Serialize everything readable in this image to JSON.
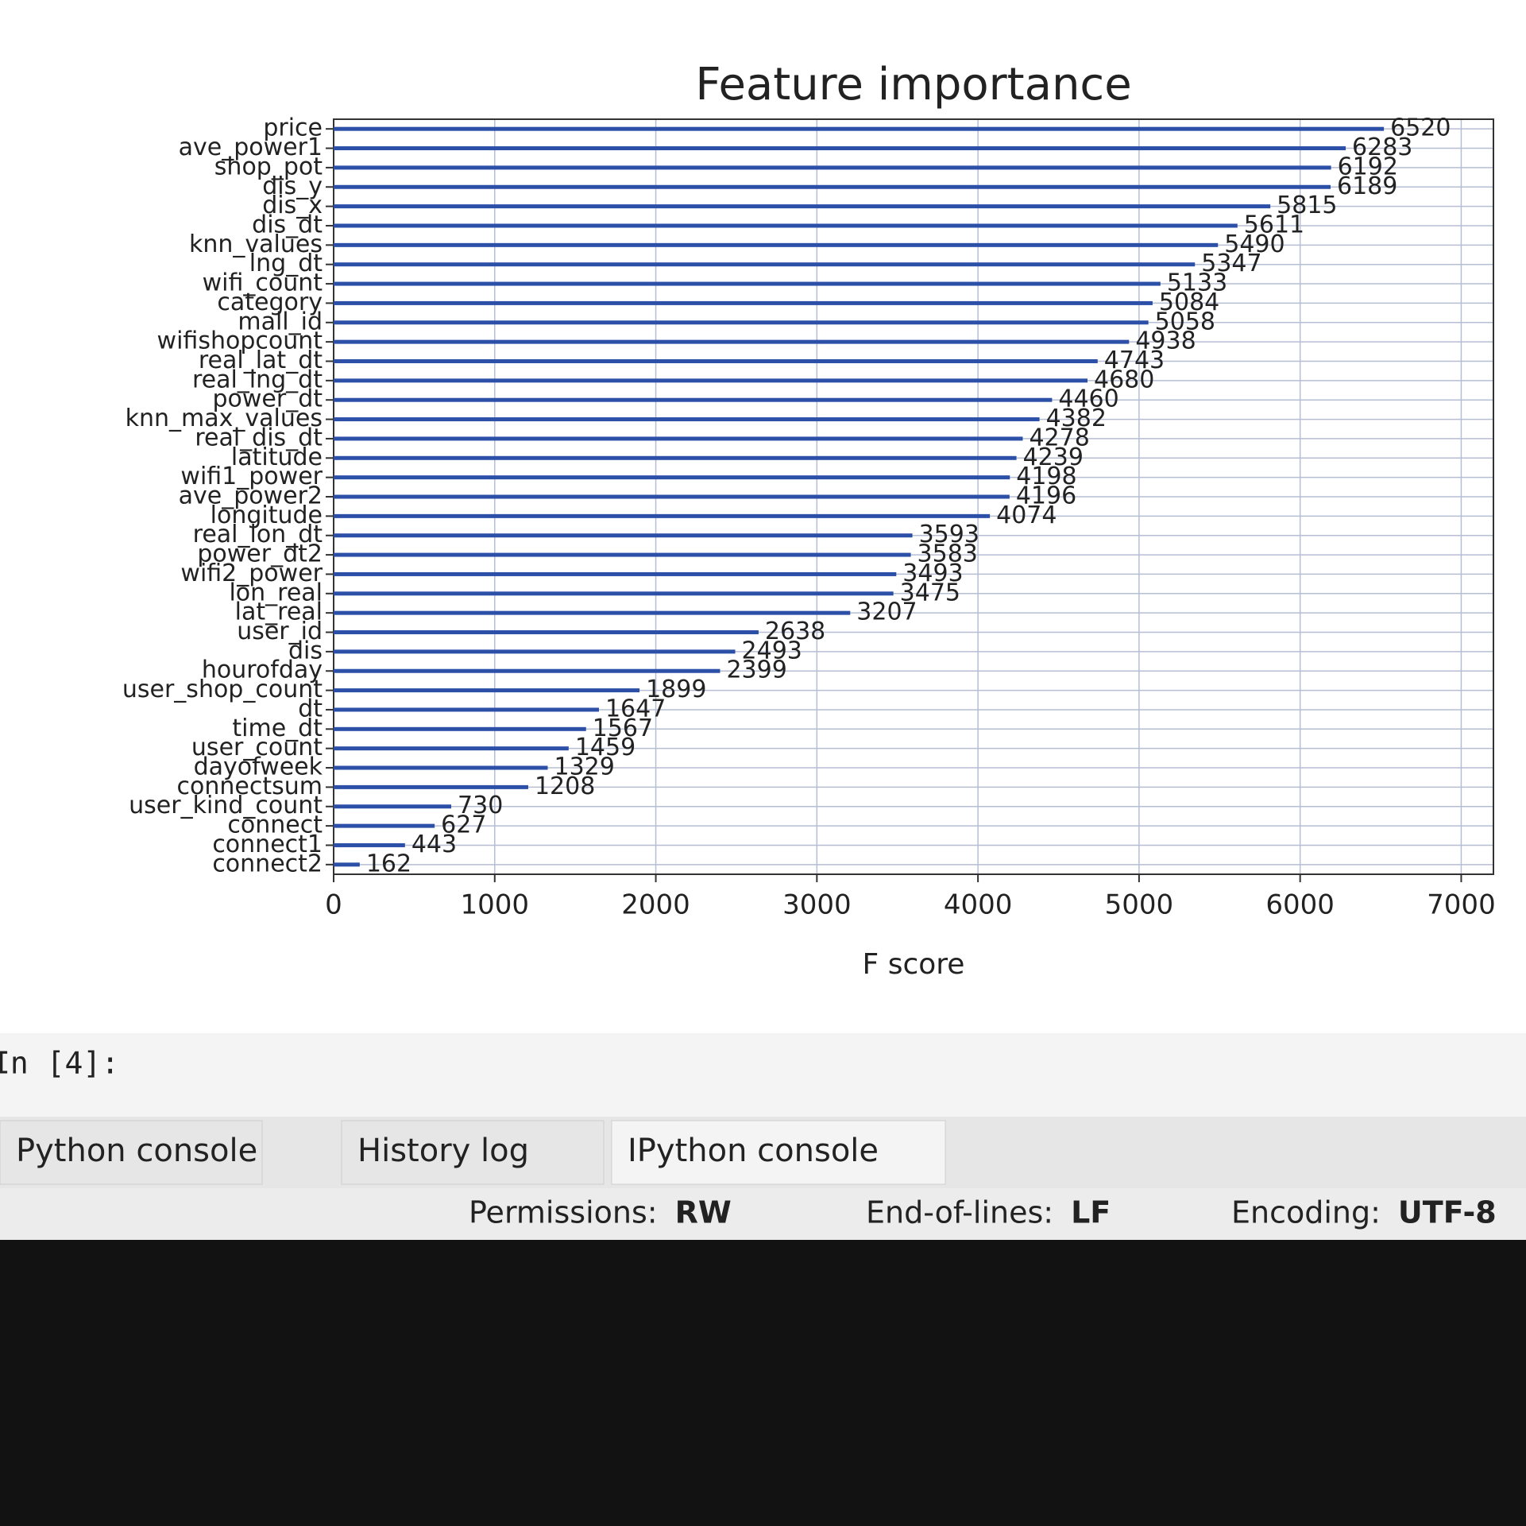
{
  "chart_data": {
    "type": "barh",
    "title": "Feature importance",
    "xlabel": "F score",
    "categories": [
      "price",
      "ave_power1",
      "shop_pot",
      "dis_y",
      "dis_x",
      "dis_dt",
      "knn_values",
      "lng_dt",
      "wifi_count",
      "category",
      "mall_id",
      "wifishopcount",
      "real_lat_dt",
      "real_lng_dt",
      "power_dt",
      "knn_max_values",
      "real_dis_dt",
      "latitude",
      "wifi1_power",
      "ave_power2",
      "longitude",
      "real_lon_dt",
      "power_dt2",
      "wifi2_power",
      "lon_real",
      "lat_real",
      "user_id",
      "dis",
      "hourofday",
      "user_shop_count",
      "dt",
      "time_dt",
      "user_count",
      "dayofweek",
      "connectsum",
      "user_kind_count",
      "connect",
      "connect1",
      "connect2"
    ],
    "values": [
      6520,
      6283,
      6192,
      6189,
      5815,
      5611,
      5490,
      5347,
      5133,
      5084,
      5058,
      4938,
      4743,
      4680,
      4460,
      4382,
      4278,
      4239,
      4198,
      4196,
      4074,
      3593,
      3583,
      3493,
      3475,
      3207,
      2638,
      2493,
      2399,
      1899,
      1647,
      1567,
      1459,
      1329,
      1208,
      730,
      627,
      443,
      162
    ],
    "color": "#2c4fa8",
    "xlim": [
      0,
      7200
    ],
    "xticks": [
      0,
      1000,
      2000,
      3000,
      4000,
      5000,
      6000,
      7000
    ],
    "grid": true
  },
  "ui": {
    "prompt": "In [4]:",
    "tabs": [
      "Python console",
      "History log",
      "IPython console"
    ],
    "status": [
      {
        "label": "Permissions:",
        "value": "RW"
      },
      {
        "label": "End-of-lines:",
        "value": "LF"
      },
      {
        "label": "Encoding:",
        "value": "UTF-8"
      }
    ]
  }
}
